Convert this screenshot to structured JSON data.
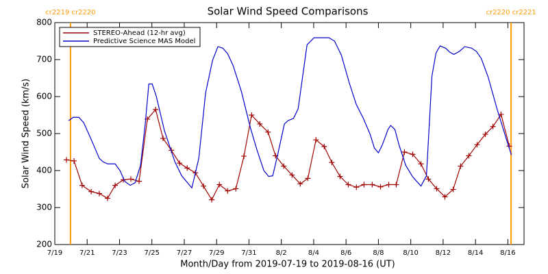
{
  "chart_data": {
    "type": "line",
    "title": "Solar Wind Speed Comparisons",
    "xlabel": "Month/Day from 2019-07-19 to 2019-08-16 (UT)",
    "ylabel": "Solar Wind Speed (km/s)",
    "xlim": [
      0,
      29
    ],
    "ylim": [
      200,
      800
    ],
    "xticks": [
      {
        "value": 0,
        "label": "7/19"
      },
      {
        "value": 2,
        "label": "7/21"
      },
      {
        "value": 4,
        "label": "7/23"
      },
      {
        "value": 6,
        "label": "7/25"
      },
      {
        "value": 8,
        "label": "7/27"
      },
      {
        "value": 10,
        "label": "7/29"
      },
      {
        "value": 12,
        "label": "7/31"
      },
      {
        "value": 14,
        "label": "8/2"
      },
      {
        "value": 16,
        "label": "8/4"
      },
      {
        "value": 18,
        "label": "8/6"
      },
      {
        "value": 20,
        "label": "8/8"
      },
      {
        "value": 22,
        "label": "8/10"
      },
      {
        "value": 24,
        "label": "8/12"
      },
      {
        "value": 26,
        "label": "8/14"
      },
      {
        "value": 28,
        "label": "8/16"
      }
    ],
    "yticks": [
      200,
      300,
      400,
      500,
      600,
      700,
      800
    ],
    "legend": "upper left",
    "annotations": [
      {
        "x": 0.97,
        "label": "cr2219 cr2220",
        "color": "#ff9900"
      },
      {
        "x": 28.2,
        "label": "cr2220 cr2221",
        "color": "#ff9900"
      }
    ],
    "series": [
      {
        "name": "STEREO-Ahead (12-hr avg)",
        "color": "#a00000",
        "marker": "+",
        "x": [
          0.72,
          1.19,
          1.69,
          2.25,
          2.75,
          3.26,
          3.73,
          4.24,
          4.7,
          5.21,
          5.72,
          6.23,
          6.69,
          7.2,
          7.71,
          8.18,
          8.69,
          9.19,
          9.7,
          10.17,
          10.68,
          11.19,
          11.69,
          12.16,
          12.67,
          13.18,
          13.64,
          14.15,
          14.66,
          15.17,
          15.64,
          16.14,
          16.65,
          17.12,
          17.63,
          18.14,
          18.64,
          19.11,
          19.62,
          20.13,
          20.64,
          21.1,
          21.61,
          22.12,
          22.63,
          23.09,
          23.6,
          24.11,
          24.62,
          25.08,
          25.59,
          26.1,
          26.61,
          27.08,
          27.58,
          28.09
        ],
        "values": [
          429,
          426,
          360,
          343,
          338,
          325,
          360,
          375,
          377,
          371,
          539,
          565,
          487,
          455,
          420,
          407,
          394,
          358,
          321,
          362,
          345,
          351,
          439,
          550,
          526,
          504,
          440,
          412,
          388,
          364,
          379,
          483,
          465,
          422,
          384,
          362,
          355,
          362,
          362,
          356,
          362,
          362,
          450,
          444,
          418,
          377,
          351,
          329,
          349,
          412,
          440,
          470,
          498,
          519,
          552,
          466
        ]
      },
      {
        "name": "Predictive Science MAS Model",
        "color": "#0000cc",
        "x": [
          0.85,
          1.14,
          1.48,
          1.78,
          2.2,
          2.75,
          2.97,
          3.26,
          3.73,
          4.03,
          4.32,
          4.66,
          4.96,
          5.3,
          5.59,
          5.81,
          6.02,
          6.27,
          6.78,
          7.42,
          7.84,
          8.47,
          8.9,
          9.32,
          9.75,
          10.08,
          10.38,
          10.68,
          11.02,
          11.53,
          12.08,
          12.5,
          12.92,
          13.22,
          13.47,
          13.77,
          14.19,
          14.41,
          14.75,
          15.04,
          15.59,
          16.02,
          16.53,
          16.95,
          17.29,
          17.71,
          18.22,
          18.64,
          19.07,
          19.49,
          19.75,
          20.0,
          20.25,
          20.59,
          20.76,
          21.02,
          21.27,
          21.69,
          22.12,
          22.63,
          22.97,
          23.31,
          23.56,
          23.81,
          24.15,
          24.41,
          24.66,
          25.0,
          25.34,
          25.76,
          26.06,
          26.36,
          26.78,
          27.33,
          27.88,
          28.22
        ],
        "values": [
          535,
          544,
          544,
          530,
          489,
          433,
          424,
          418,
          418,
          400,
          371,
          360,
          367,
          414,
          526,
          634,
          634,
          601,
          507,
          424,
          386,
          353,
          433,
          610,
          698,
          735,
          731,
          716,
          684,
          614,
          517,
          455,
          400,
          384,
          386,
          442,
          526,
          535,
          541,
          567,
          740,
          759,
          759,
          759,
          750,
          712,
          634,
          578,
          541,
          498,
          461,
          448,
          470,
          511,
          522,
          511,
          470,
          414,
          383,
          358,
          386,
          656,
          718,
          737,
          731,
          720,
          714,
          722,
          735,
          731,
          722,
          703,
          653,
          567,
          489,
          442
        ]
      }
    ]
  }
}
